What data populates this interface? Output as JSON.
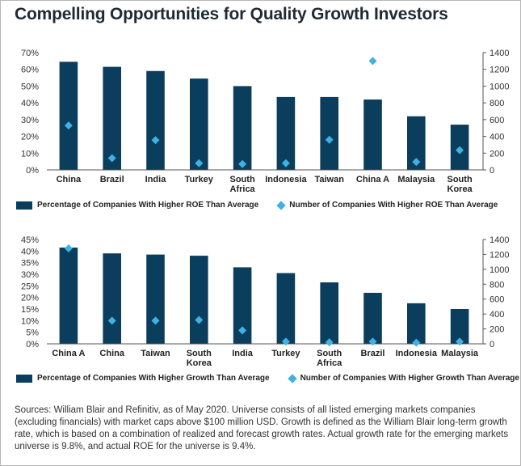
{
  "title": "Compelling Opportunities for Quality Growth Investors",
  "colors": {
    "bar": "#0b3d5c",
    "marker": "#3fb1e3",
    "axis": "#555555"
  },
  "chart_data": [
    {
      "type": "bar",
      "categories": [
        "China",
        "Brazil",
        "India",
        "Turkey",
        "South Africa",
        "Indonesia",
        "Taiwan",
        "China A",
        "Malaysia",
        "South Korea"
      ],
      "tick_labels": [
        [
          "China"
        ],
        [
          "Brazil"
        ],
        [
          "India"
        ],
        [
          "Turkey"
        ],
        [
          "South",
          "Africa"
        ],
        [
          "Indonesia"
        ],
        [
          "Taiwan"
        ],
        [
          "China A"
        ],
        [
          "Malaysia"
        ],
        [
          "South",
          "Korea"
        ]
      ],
      "series": [
        {
          "name": "Percentage of Companies With Higher ROE Than Average",
          "axis": "left",
          "values": [
            64.5,
            61.5,
            59,
            54.5,
            50,
            43.5,
            43.5,
            42,
            32,
            27
          ]
        },
        {
          "name": "Number of Companies With Higher ROE Than Average",
          "axis": "right",
          "marker": "diamond",
          "values": [
            530,
            140,
            355,
            80,
            70,
            80,
            360,
            1300,
            95,
            235
          ]
        }
      ],
      "left_ticks": [
        "0%",
        "10%",
        "20%",
        "30%",
        "40%",
        "50%",
        "60%",
        "70%"
      ],
      "right_ticks": [
        "0",
        "200",
        "400",
        "600",
        "800",
        "1000",
        "1200",
        "1400"
      ],
      "ylim_left": [
        0,
        70
      ],
      "ylim_right": [
        0,
        1400
      ],
      "legend_position": "bottom"
    },
    {
      "type": "bar",
      "categories": [
        "China A",
        "China",
        "Taiwan",
        "South Korea",
        "India",
        "Turkey",
        "South Africa",
        "Brazil",
        "Indonesia",
        "Malaysia"
      ],
      "tick_labels": [
        [
          "China A"
        ],
        [
          "China"
        ],
        [
          "Taiwan"
        ],
        [
          "South",
          "Korea"
        ],
        [
          "India"
        ],
        [
          "Turkey"
        ],
        [
          "South",
          "Africa"
        ],
        [
          "Brazil"
        ],
        [
          "Indonesia"
        ],
        [
          "Malaysia"
        ]
      ],
      "series": [
        {
          "name": "Percentage of Companies With Higher Growth Than Average",
          "axis": "left",
          "values": [
            41.5,
            39,
            38.5,
            38,
            33,
            30.5,
            26.5,
            22,
            17.5,
            15
          ]
        },
        {
          "name": "Number of Companies With Higher Growth Than Average",
          "axis": "right",
          "marker": "diamond",
          "values": [
            1280,
            310,
            310,
            320,
            180,
            30,
            20,
            30,
            15,
            30
          ]
        }
      ],
      "left_ticks": [
        "0%",
        "5%",
        "10%",
        "15%",
        "20%",
        "25%",
        "30%",
        "35%",
        "40%",
        "45%"
      ],
      "right_ticks": [
        "0",
        "200",
        "400",
        "600",
        "800",
        "1000",
        "1200",
        "1400"
      ],
      "ylim_left": [
        0,
        45
      ],
      "ylim_right": [
        0,
        1400
      ],
      "legend_position": "bottom"
    }
  ],
  "sources": "Sources: William Blair and Refinitiv, as of May 2020. Universe consists of all listed emerging markets companies (excluding financials) with market caps above $100 million USD. Growth is defined as the William Blair long-term growth rate, which is based on a combination of realized and forecast growth rates. Actual growth rate for the emerging markets universe is 9.8%, and actual ROE for the universe is 9.4%."
}
